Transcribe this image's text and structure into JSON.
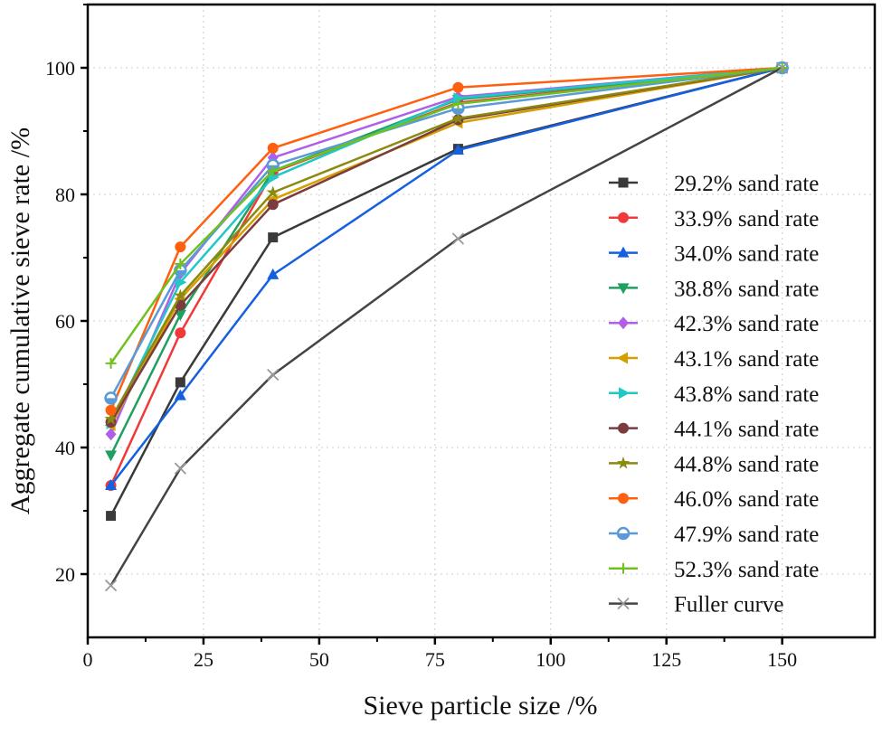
{
  "chart_data": {
    "type": "line",
    "title": "",
    "xlabel": "Sieve particle size /%",
    "ylabel": "Aggregate cumulative sieve rate /%",
    "xlim": [
      0,
      170
    ],
    "ylim": [
      10,
      110
    ],
    "xticks": [
      0,
      25,
      50,
      75,
      100,
      125,
      150
    ],
    "yticks": [
      20,
      40,
      60,
      80,
      100
    ],
    "grid": true,
    "legend_position": "right",
    "x": [
      5,
      20,
      40,
      80,
      150
    ],
    "series": [
      {
        "name": "29.2% sand rate",
        "color": "#3a3a3a",
        "marker": "square",
        "values": [
          29.2,
          50.3,
          73.2,
          87.2,
          100
        ]
      },
      {
        "name": "33.9% sand rate",
        "color": "#f03a3a",
        "marker": "circle",
        "values": [
          34.0,
          58.1,
          83.5,
          94.5,
          100
        ]
      },
      {
        "name": "34.0% sand rate",
        "color": "#1560e0",
        "marker": "triangle-up",
        "values": [
          34.0,
          48.2,
          67.3,
          87.0,
          100
        ]
      },
      {
        "name": "38.8% sand rate",
        "color": "#1fa060",
        "marker": "triangle-down",
        "values": [
          38.8,
          61.0,
          83.7,
          95.0,
          100
        ]
      },
      {
        "name": "42.3% sand rate",
        "color": "#b060e8",
        "marker": "diamond",
        "values": [
          42.1,
          67.5,
          85.8,
          95.4,
          100
        ]
      },
      {
        "name": "43.1% sand rate",
        "color": "#d4a000",
        "marker": "triangle-left",
        "values": [
          43.5,
          63.5,
          79.2,
          91.3,
          100
        ]
      },
      {
        "name": "43.8% sand rate",
        "color": "#20c8c8",
        "marker": "triangle-right",
        "values": [
          43.8,
          66.1,
          82.7,
          95.2,
          100
        ]
      },
      {
        "name": "44.1% sand rate",
        "color": "#7a3c3c",
        "marker": "hexagon",
        "values": [
          44.0,
          62.5,
          78.4,
          91.8,
          100
        ]
      },
      {
        "name": "44.8% sand rate",
        "color": "#8a8a10",
        "marker": "star",
        "values": [
          44.5,
          64.0,
          80.3,
          92.0,
          100
        ]
      },
      {
        "name": "46.0% sand rate",
        "color": "#ff6010",
        "marker": "pentagon",
        "values": [
          45.9,
          71.7,
          87.3,
          96.9,
          100
        ]
      },
      {
        "name": "47.9% sand rate",
        "color": "#5a9ad8",
        "marker": "half-circle",
        "values": [
          47.8,
          68.0,
          84.6,
          93.6,
          100
        ]
      },
      {
        "name": "52.3% sand rate",
        "color": "#70c020",
        "marker": "plus",
        "values": [
          53.3,
          69.0,
          83.7,
          94.3,
          100
        ]
      },
      {
        "name": "Fuller curve",
        "color": "#444444",
        "marker": "x",
        "values": [
          18.2,
          36.7,
          51.5,
          73.0,
          100
        ]
      }
    ]
  }
}
